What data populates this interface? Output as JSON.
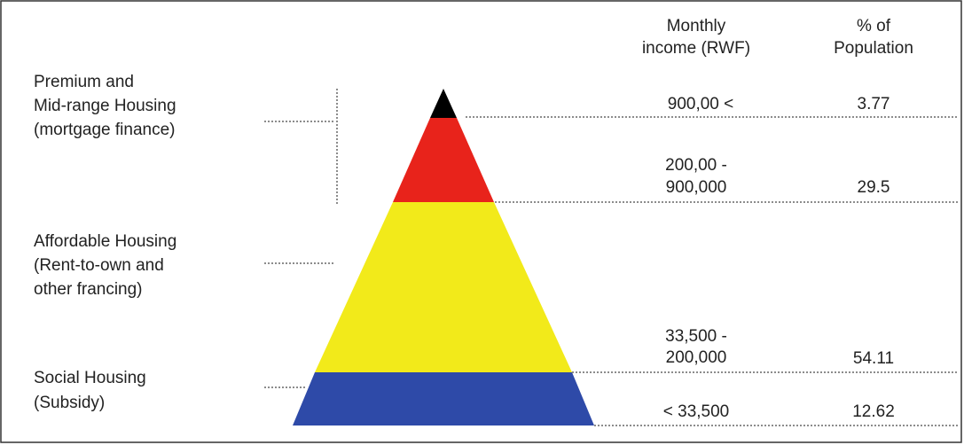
{
  "headers": {
    "income": [
      "Monthly",
      "income (RWF)"
    ],
    "percent": [
      "% of",
      "Population"
    ]
  },
  "segments": [
    {
      "label": [
        "Premium and",
        "Mid-range Housing",
        "(mortgage finance)"
      ]
    },
    {
      "label": [
        "Affordable Housing",
        "(Rent-to-own and",
        "other francing)"
      ]
    },
    {
      "label": [
        "Social Housing",
        "(Subsidy)"
      ]
    }
  ],
  "rows": [
    {
      "income": [
        "900,00 <"
      ],
      "percent": "3.77"
    },
    {
      "income": [
        "200,00 -",
        "900,000"
      ],
      "percent": "29.5"
    },
    {
      "income": [
        "33,500 -",
        "200,000"
      ],
      "percent": "54.11"
    },
    {
      "income": [
        "< 33,500"
      ],
      "percent": "12.62"
    }
  ]
}
